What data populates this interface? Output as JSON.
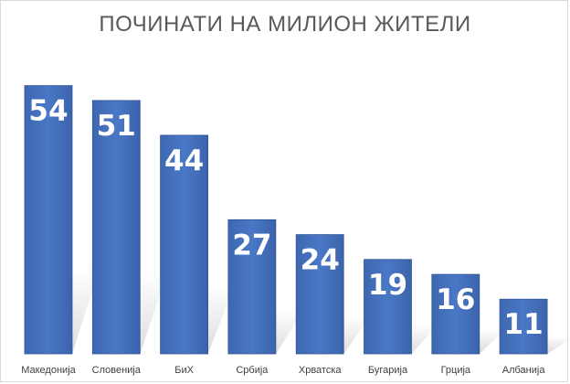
{
  "chart_data": {
    "type": "bar",
    "title": "ПОЧИНАТИ НА МИЛИОН ЖИТЕЛИ",
    "categories": [
      "Македонија",
      "Словенија",
      "БиХ",
      "Србија",
      "Хрватска",
      "Бугарија",
      "Грција",
      "Албанија"
    ],
    "values": [
      54,
      51,
      44,
      27,
      24,
      19,
      16,
      11
    ],
    "xlabel": "",
    "ylabel": "",
    "ylim": [
      0,
      60
    ],
    "grid": false,
    "data_labels": true,
    "colors": {
      "bar": "#4472c4",
      "bar_edge": "#2f5597",
      "title": "#595959",
      "label": "#ffffff"
    }
  }
}
